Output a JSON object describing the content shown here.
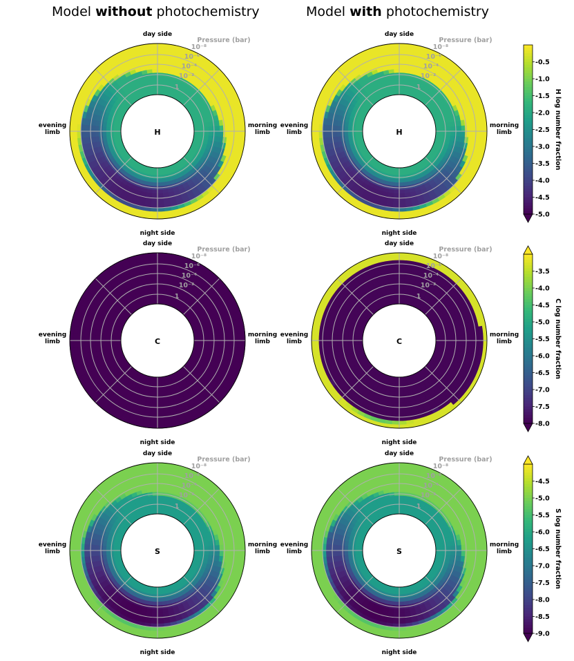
{
  "figure": {
    "col_titles": [
      {
        "pre": "Model ",
        "bold": "without",
        "post": " photochemistry"
      },
      {
        "pre": "Model ",
        "bold": "with",
        "post": " photochemistry"
      }
    ],
    "labels": {
      "day": "day side",
      "night": "night side",
      "morning": [
        "morning",
        "limb"
      ],
      "evening": [
        "evening",
        "limb"
      ],
      "pressure_title": "Pressure (bar)",
      "pressure_ticks": [
        "10⁻⁸",
        "10⁻⁶",
        "10⁻⁴",
        "10⁻²",
        "1"
      ]
    }
  },
  "chart_data": [
    {
      "type": "heatmap",
      "projection": "polar",
      "species": "H",
      "panels": [
        "Model without photochemistry",
        "Model with photochemistry"
      ],
      "colorbar": {
        "label": "H log number fraction",
        "range": [
          -5.0,
          0.0
        ],
        "ticks": [
          "-0.5",
          "-1.0",
          "-1.5",
          "-2.0",
          "-2.5",
          "-3.0",
          "-3.5",
          "-4.0",
          "-4.5",
          "-5.0"
        ],
        "extend": "min"
      },
      "description_levels": {
        "upper_atmosphere": -0.2,
        "dayside_deep": -3.0,
        "nightside_band": -5.0
      }
    },
    {
      "type": "heatmap",
      "projection": "polar",
      "species": "C",
      "panels": [
        "Model without photochemistry",
        "Model with photochemistry"
      ],
      "colorbar": {
        "label": "C log number fraction",
        "range": [
          -8.0,
          -3.0
        ],
        "ticks": [
          "-3.5",
          "-4.0",
          "-4.5",
          "-5.0",
          "-5.5",
          "-6.0",
          "-6.5",
          "-7.0",
          "-7.5",
          "-8.0"
        ],
        "extend": "both"
      },
      "description_levels": {
        "without_all": -8.0,
        "with_upper": -3.4,
        "with_deep": -8.0
      }
    },
    {
      "type": "heatmap",
      "projection": "polar",
      "species": "S",
      "panels": [
        "Model without photochemistry",
        "Model with photochemistry"
      ],
      "colorbar": {
        "label": "S log number fraction",
        "range": [
          -9.0,
          -4.0
        ],
        "ticks": [
          "-4.5",
          "-5.0",
          "-5.5",
          "-6.0",
          "-6.5",
          "-7.0",
          "-7.5",
          "-8.0",
          "-8.5",
          "-9.0"
        ],
        "extend": "both"
      },
      "description_levels": {
        "upper_atmosphere": -5.0,
        "dayside_deep": -6.2,
        "nightside_band": -9.0
      }
    }
  ]
}
